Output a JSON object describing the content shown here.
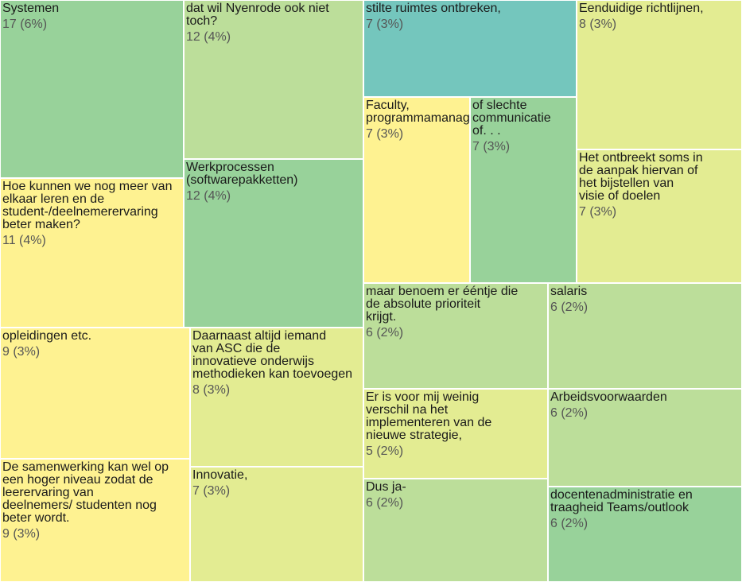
{
  "chart_data": {
    "type": "treemap",
    "items": [
      {
        "label": "Systemen",
        "value": 17,
        "pct": "6%",
        "value_text": "17 (6%)",
        "color": "#98d29a"
      },
      {
        "label": "dat wil Nyenrode ook niet\ntoch?",
        "value": 12,
        "pct": "4%",
        "value_text": "12 (4%)",
        "color": "#bcde9a"
      },
      {
        "label": "stilte ruimtes ontbreken,",
        "value": 7,
        "pct": "3%",
        "value_text": "7 (3%)",
        "color": "#74c6bd"
      },
      {
        "label": "Eenduidige richtlijnen,",
        "value": 8,
        "pct": "3%",
        "value_text": "8 (3%)",
        "color": "#e3ec92"
      },
      {
        "label": "Hoe kunnen we nog meer van\nelkaar leren en de\nstudent-/deelnemerervaring\nbeter maken?",
        "value": 11,
        "pct": "4%",
        "value_text": "11 (4%)",
        "color": "#fef291"
      },
      {
        "label": "Werkprocessen\n(softwarepakketten)",
        "value": 12,
        "pct": "4%",
        "value_text": "12 (4%)",
        "color": "#98d29a"
      },
      {
        "label": "Faculty,\nprogrammamanagement.",
        "value": 7,
        "pct": "3%",
        "value_text": "7 (3%)",
        "color": "#fef291"
      },
      {
        "label": "of slechte\ncommunicatie\nof. . .",
        "value": 7,
        "pct": "3%",
        "value_text": "7 (3%)",
        "color": "#98d29a"
      },
      {
        "label": "Het ontbreekt soms in\nde aanpak hiervan of\nhet bijstellen van\nvisie of doelen",
        "value": 7,
        "pct": "3%",
        "value_text": "7 (3%)",
        "color": "#e3ec92"
      },
      {
        "label": "opleidingen etc.",
        "value": 9,
        "pct": "3%",
        "value_text": "9 (3%)",
        "color": "#fef291"
      },
      {
        "label": "Daarnaast altijd iemand\nvan ASC die de\ninnovatieve onderwijs\nmethodieken kan toevoegen",
        "value": 8,
        "pct": "3%",
        "value_text": "8 (3%)",
        "color": "#e3ec92"
      },
      {
        "label": "maar benoem er ééntje die\nde absolute prioriteit\nkrijgt.",
        "value": 6,
        "pct": "2%",
        "value_text": "6 (2%)",
        "color": "#bcde9a"
      },
      {
        "label": "salaris",
        "value": 6,
        "pct": "2%",
        "value_text": "6 (2%)",
        "color": "#bcde9a"
      },
      {
        "label": "Er is voor mij weinig\nverschil na het\nimplementeren van de\nnieuwe strategie,",
        "value": 5,
        "pct": "2%",
        "value_text": "5 (2%)",
        "color": "#e3ec92"
      },
      {
        "label": "Arbeidsvoorwaarden",
        "value": 6,
        "pct": "2%",
        "value_text": "6 (2%)",
        "color": "#bcde9a"
      },
      {
        "label": "De samenwerking kan wel op\neen hoger niveau zodat de\nleerervaring van\ndeelnemers/ studenten nog\nbeter wordt.",
        "value": 9,
        "pct": "3%",
        "value_text": "9 (3%)",
        "color": "#fef291"
      },
      {
        "label": "Innovatie,",
        "value": 7,
        "pct": "3%",
        "value_text": "7 (3%)",
        "color": "#e3ec92"
      },
      {
        "label": "Dus ja-",
        "value": 6,
        "pct": "2%",
        "value_text": "6 (2%)",
        "color": "#bcde9a"
      },
      {
        "label": "docentenadministratie en\ntraagheid Teams/outlook",
        "value": 6,
        "pct": "2%",
        "value_text": "6 (2%)",
        "color": "#98d29a"
      }
    ]
  }
}
